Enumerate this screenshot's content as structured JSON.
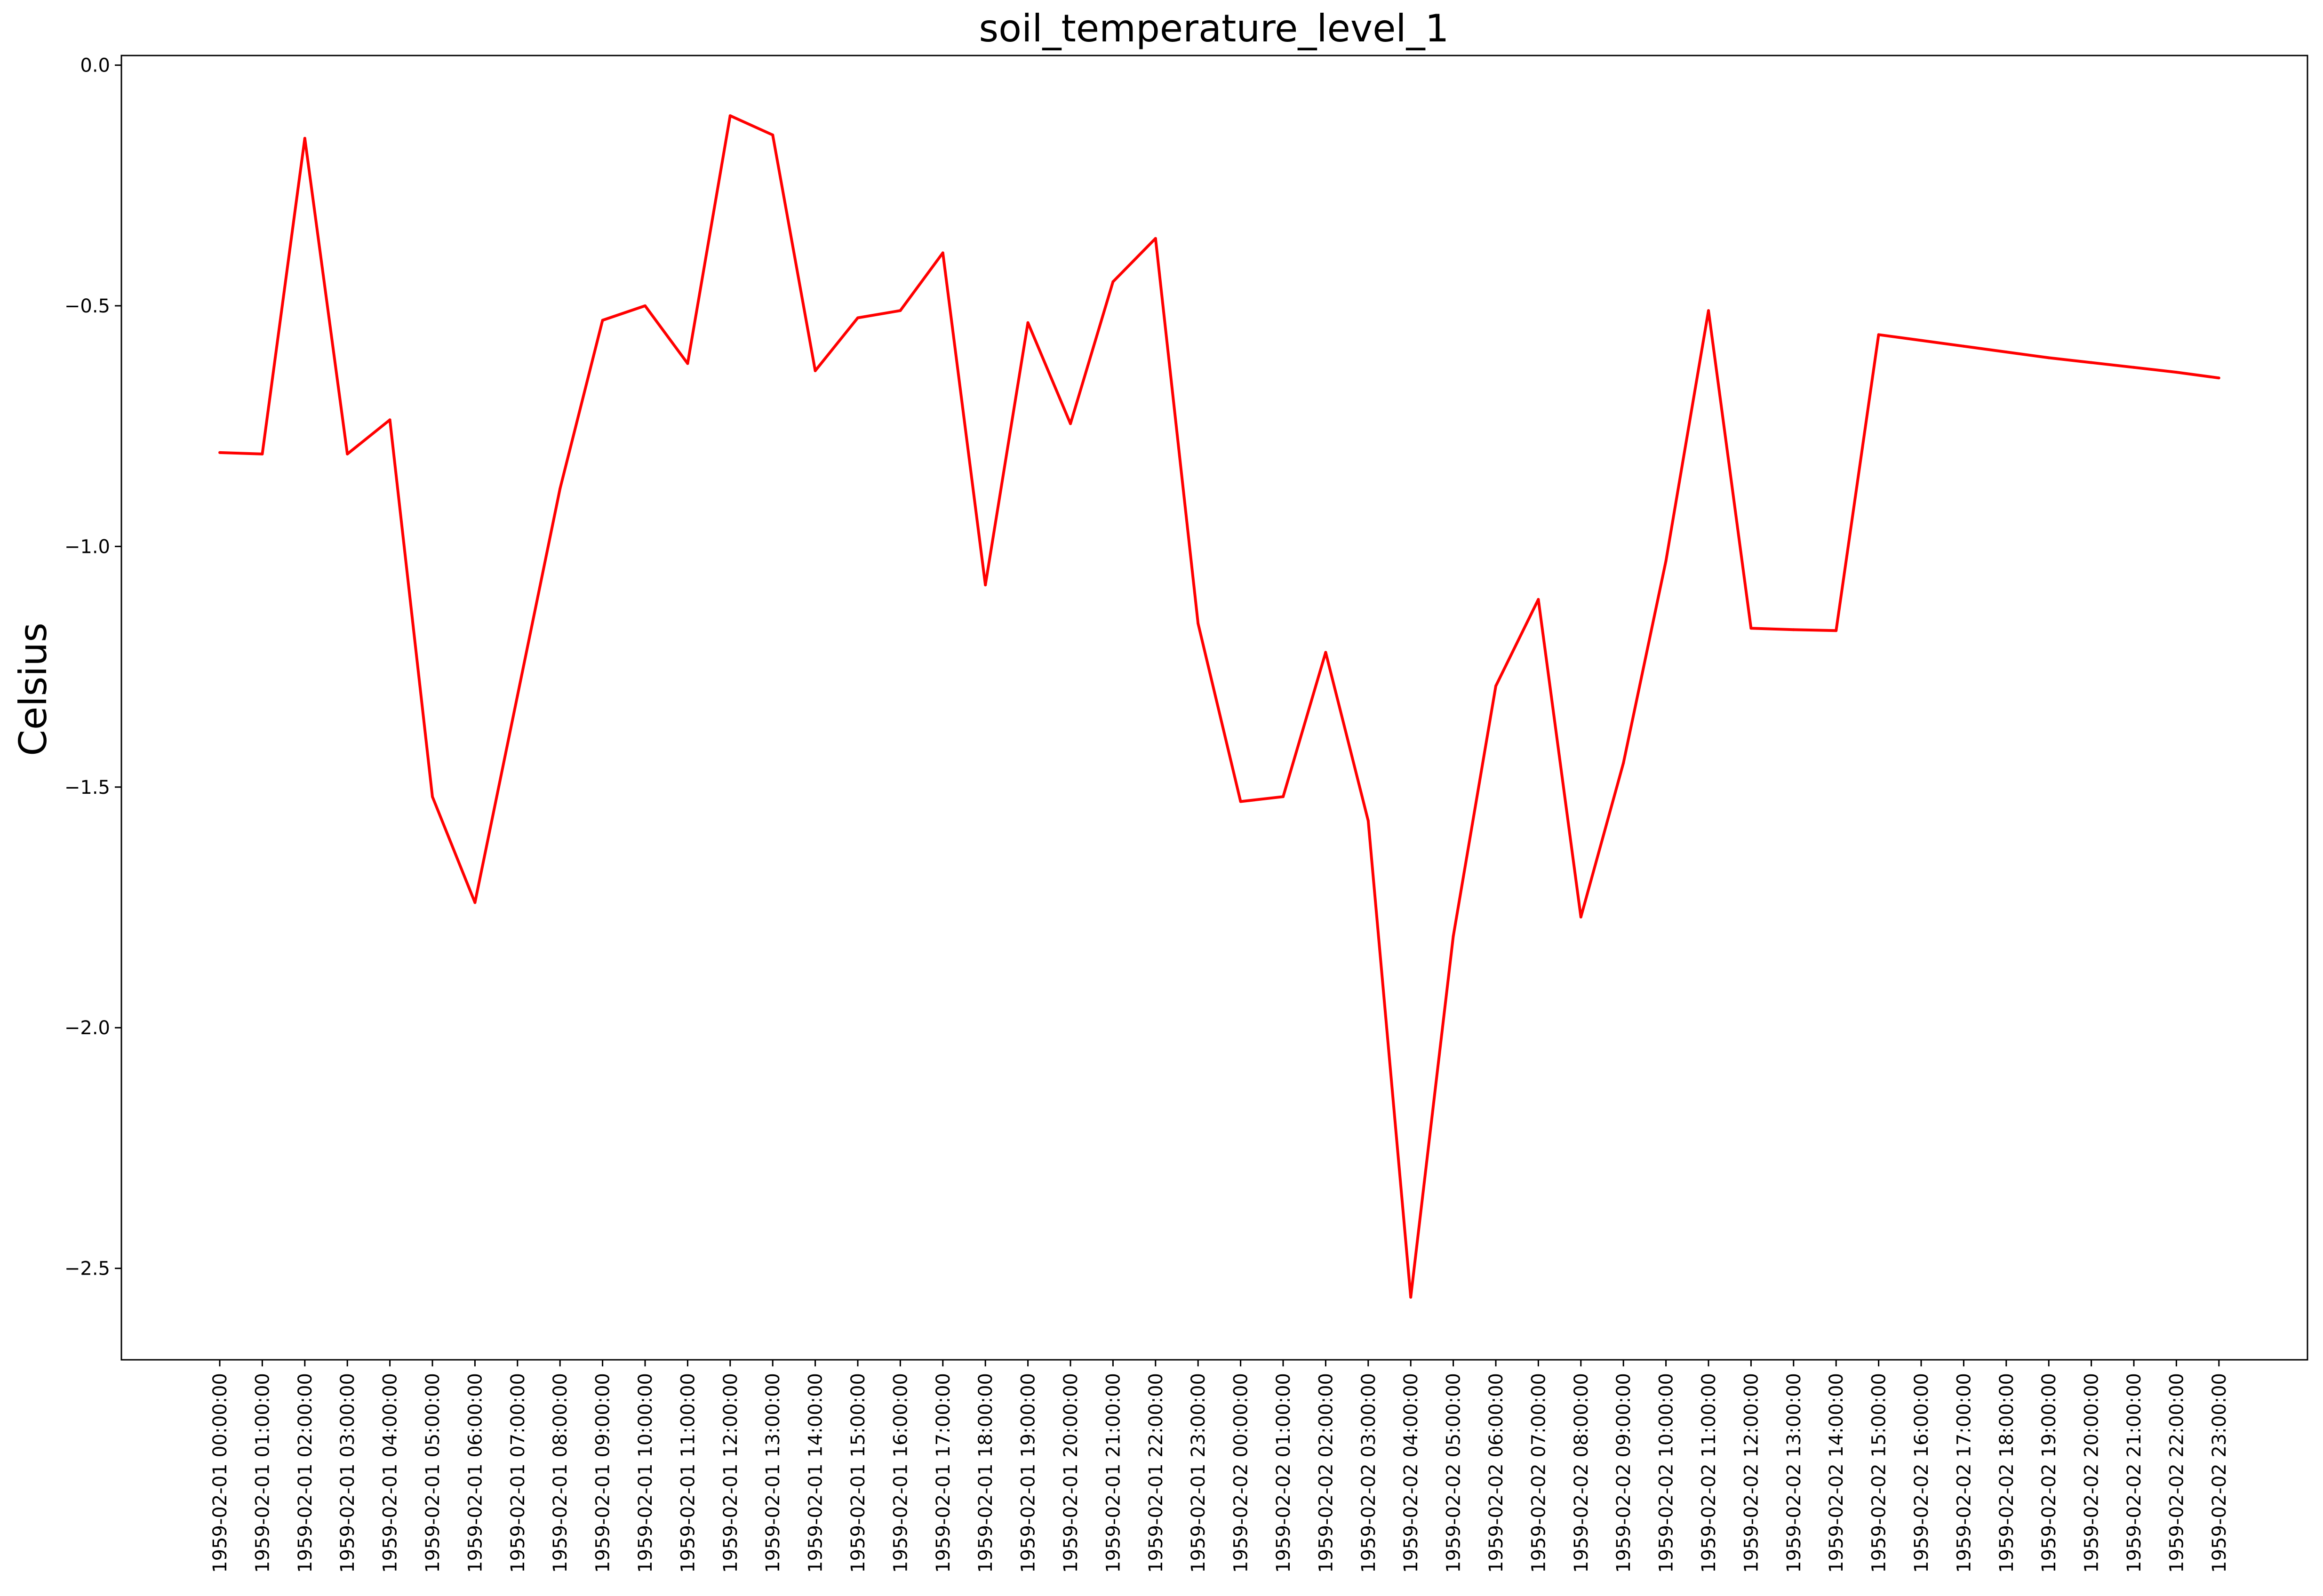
{
  "chart_data": {
    "type": "line",
    "title": "soil_temperature_level_1",
    "xlabel": "",
    "ylabel": "Celsius",
    "ylim": [
      -2.69,
      0.02
    ],
    "yticks": [
      0.0,
      -0.5,
      -1.0,
      -1.5,
      -2.0,
      -2.5
    ],
    "ytick_labels": [
      "0.0",
      "−0.5",
      "−1.0",
      "−1.5",
      "−2.0",
      "−2.5"
    ],
    "grid": false,
    "legend": "none",
    "line_color": "#ff0000",
    "x": [
      "1959-02-01 00:00:00",
      "1959-02-01 01:00:00",
      "1959-02-01 02:00:00",
      "1959-02-01 03:00:00",
      "1959-02-01 04:00:00",
      "1959-02-01 05:00:00",
      "1959-02-01 06:00:00",
      "1959-02-01 07:00:00",
      "1959-02-01 08:00:00",
      "1959-02-01 09:00:00",
      "1959-02-01 10:00:00",
      "1959-02-01 11:00:00",
      "1959-02-01 12:00:00",
      "1959-02-01 13:00:00",
      "1959-02-01 14:00:00",
      "1959-02-01 15:00:00",
      "1959-02-01 16:00:00",
      "1959-02-01 17:00:00",
      "1959-02-01 18:00:00",
      "1959-02-01 19:00:00",
      "1959-02-01 20:00:00",
      "1959-02-01 21:00:00",
      "1959-02-01 22:00:00",
      "1959-02-01 23:00:00",
      "1959-02-02 00:00:00",
      "1959-02-02 01:00:00",
      "1959-02-02 02:00:00",
      "1959-02-02 03:00:00",
      "1959-02-02 04:00:00",
      "1959-02-02 05:00:00",
      "1959-02-02 06:00:00",
      "1959-02-02 07:00:00",
      "1959-02-02 08:00:00",
      "1959-02-02 09:00:00",
      "1959-02-02 10:00:00",
      "1959-02-02 11:00:00",
      "1959-02-02 12:00:00",
      "1959-02-02 13:00:00",
      "1959-02-02 14:00:00",
      "1959-02-02 15:00:00",
      "1959-02-02 16:00:00",
      "1959-02-02 17:00:00",
      "1959-02-02 18:00:00",
      "1959-02-02 19:00:00",
      "1959-02-02 20:00:00",
      "1959-02-02 21:00:00",
      "1959-02-02 22:00:00",
      "1959-02-02 23:00:00"
    ],
    "series": [
      {
        "values": [
          -0.805,
          -0.808,
          -0.152,
          -0.808,
          -0.737,
          -1.52,
          -1.74,
          -1.31,
          -0.88,
          -0.53,
          -0.5,
          -0.62,
          -0.105,
          -0.145,
          -0.635,
          -0.525,
          -0.51,
          -0.39,
          -1.08,
          -0.535,
          -0.745,
          -0.45,
          -0.36,
          -1.16,
          -1.53,
          -1.52,
          -1.22,
          -1.57,
          -2.56,
          -1.81,
          -1.29,
          -1.11,
          -1.77,
          -1.45,
          -1.03,
          -0.51,
          -1.17,
          -1.173,
          -1.175,
          -0.56,
          -0.572,
          -0.584,
          -0.596,
          -0.608,
          -0.618,
          -0.628,
          -0.638,
          -0.65
        ]
      }
    ]
  }
}
